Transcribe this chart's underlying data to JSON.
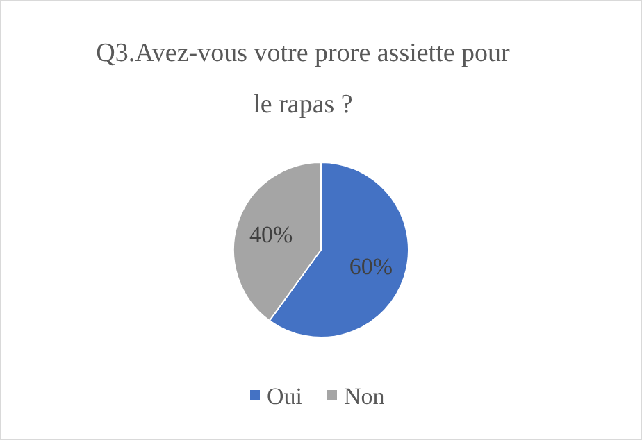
{
  "chart_data": {
    "type": "pie",
    "title": "Q3.Avez-vous votre prore assiette pour le rapas ?",
    "categories": [
      "Oui",
      "Non"
    ],
    "values": [
      60,
      40
    ],
    "colors": [
      "#4472c4",
      "#a5a5a5"
    ],
    "value_labels": [
      "60%",
      "40%"
    ],
    "legend": "bottom"
  }
}
